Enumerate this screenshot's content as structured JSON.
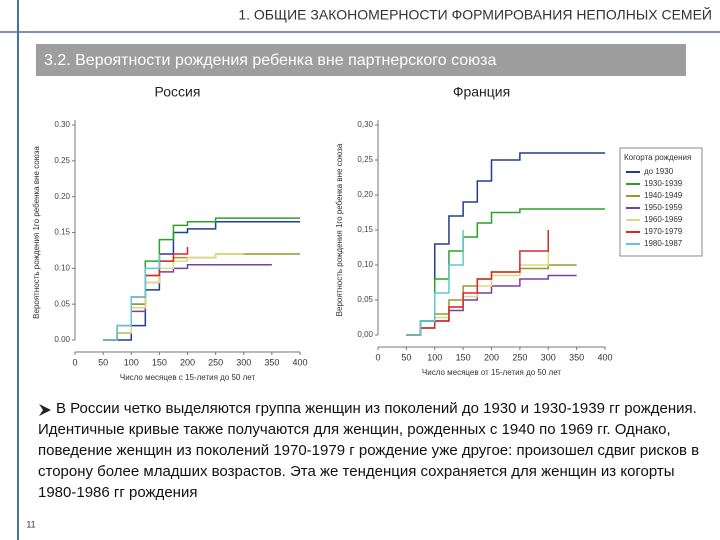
{
  "header": "1. ОБЩИЕ ЗАКОНОМЕРНОСТИ ФОРМИРОВАНИЯ НЕПОЛНЫХ СЕМЕЙ",
  "subtitle": "3.2. Вероятности рождения ребенка вне партнерского союза",
  "text": "В России четко выделяются группа женщин из поколений до 1930 и 1930-1939 гг рождения. Идентичные кривые также получаются для женщин, рожденных с 1940 по 1969 гг. Однако, поведение женщин из поколений 1970-1979 г рождение уже другое: произошел сдвиг рисков в сторону более младших возрастов. Эта же тенденция сохраняется для женщин из когорты 1980-1986 гг рождения",
  "page_number": "11",
  "chart_data": [
    {
      "type": "line",
      "title": "Россия",
      "x_label": "Число месяцев с 15-летия до 50 лет",
      "y_label": "Вероятность рождения 1го ребенка вне союза",
      "x": [
        50,
        75,
        100,
        125,
        150,
        175,
        200,
        250,
        300,
        350,
        400
      ],
      "xlim": [
        0,
        400
      ],
      "xticks": [
        0,
        50,
        100,
        150,
        200,
        250,
        300,
        350,
        400
      ],
      "ylim": [
        0,
        0.3
      ],
      "yticks": [
        {
          "value": 0,
          "label": "0.00"
        },
        {
          "value": 0.05,
          "label": "0.05"
        },
        {
          "value": 0.1,
          "label": "0.10"
        },
        {
          "value": 0.15,
          "label": "0.15"
        },
        {
          "value": 0.2,
          "label": "0.20"
        },
        {
          "value": 0.25,
          "label": "0.25"
        },
        {
          "value": 0.3,
          "label": "0.30"
        }
      ],
      "series": [
        {
          "color": "#1f3f8f",
          "values": [
            0,
            0,
            0.02,
            0.07,
            0.12,
            0.15,
            0.155,
            0.165,
            0.165,
            0.165,
            0.165
          ]
        },
        {
          "color": "#2ca02c",
          "values": [
            0,
            0.01,
            0.05,
            0.11,
            0.14,
            0.16,
            0.165,
            0.17,
            0.17,
            0.17,
            0.17
          ]
        },
        {
          "color": "#9a9a2a",
          "values": [
            0,
            0.01,
            0.05,
            0.09,
            0.11,
            0.115,
            0.115,
            0.12,
            0.12,
            0.12,
            0.12
          ]
        },
        {
          "color": "#7b3f9e",
          "values": [
            0,
            0.01,
            0.04,
            0.08,
            0.095,
            0.1,
            0.105,
            0.105,
            0.105,
            0.105,
            null
          ]
        },
        {
          "color": "#e0d880",
          "values": [
            0,
            0.01,
            0.045,
            0.08,
            0.1,
            0.11,
            0.115,
            0.12,
            0.12,
            null,
            null
          ]
        },
        {
          "color": "#d62728",
          "values": [
            0,
            0.02,
            0.06,
            0.09,
            0.11,
            0.12,
            0.13,
            null,
            null,
            null,
            null
          ]
        },
        {
          "color": "#5fc7d6",
          "values": [
            0,
            0.02,
            0.06,
            0.1,
            0.12,
            null,
            null,
            null,
            null,
            null,
            null
          ]
        }
      ]
    },
    {
      "type": "line",
      "title": "Франция",
      "x_label": "Число месяцев от 15-летия до 50 лет",
      "y_label": "Вероятность рождения 1го ребенка вне союза",
      "legend_title": "Когорта рождения",
      "legend": "right",
      "x": [
        50,
        75,
        100,
        125,
        150,
        175,
        200,
        250,
        300,
        350,
        400
      ],
      "xlim": [
        0,
        400
      ],
      "xticks": [
        0,
        50,
        100,
        150,
        200,
        250,
        300,
        350,
        400
      ],
      "ylim": [
        0,
        0.3
      ],
      "yticks": [
        {
          "value": 0,
          "label": "0,00"
        },
        {
          "value": 0.05,
          "label": "0,05"
        },
        {
          "value": 0.1,
          "label": "0,10"
        },
        {
          "value": 0.15,
          "label": "0,15"
        },
        {
          "value": 0.2,
          "label": "0,20"
        },
        {
          "value": 0.25,
          "label": "0,25"
        },
        {
          "value": 0.3,
          "label": "0,30"
        }
      ],
      "series": [
        {
          "name": "до 1930",
          "color": "#1f3f8f",
          "values": [
            0,
            0.02,
            0.13,
            0.17,
            0.19,
            0.22,
            0.25,
            0.26,
            0.26,
            0.26,
            0.26
          ]
        },
        {
          "name": "1930-1939",
          "color": "#2ca02c",
          "values": [
            0,
            0.02,
            0.08,
            0.12,
            0.14,
            0.16,
            0.175,
            0.18,
            0.18,
            0.18,
            0.18
          ]
        },
        {
          "name": "1940-1949",
          "color": "#9a9a2a",
          "values": [
            0,
            0.01,
            0.03,
            0.05,
            0.07,
            0.08,
            0.09,
            0.095,
            0.1,
            0.1,
            null
          ]
        },
        {
          "name": "1950-1959",
          "color": "#7b3f9e",
          "values": [
            0,
            0.01,
            0.02,
            0.035,
            0.05,
            0.06,
            0.07,
            0.08,
            0.085,
            0.085,
            null
          ]
        },
        {
          "name": "1960-1969",
          "color": "#e0d880",
          "values": [
            0,
            0.01,
            0.025,
            0.04,
            0.055,
            0.07,
            0.085,
            0.1,
            0.12,
            null,
            null
          ]
        },
        {
          "name": "1970-1979",
          "color": "#d62728",
          "values": [
            0,
            0.01,
            0.02,
            0.04,
            0.06,
            0.08,
            0.09,
            0.12,
            0.15,
            null,
            null
          ]
        },
        {
          "name": "1980-1987",
          "color": "#5fc7d6",
          "values": [
            0,
            0.02,
            0.06,
            0.1,
            0.15,
            null,
            null,
            null,
            null,
            null,
            null
          ]
        }
      ]
    }
  ]
}
